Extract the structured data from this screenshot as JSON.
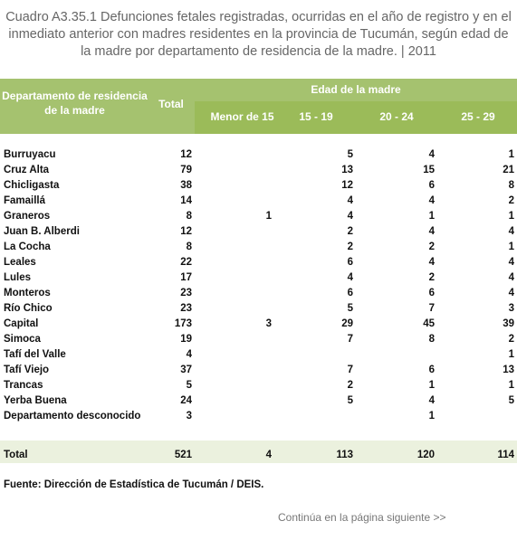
{
  "title": "Cuadro A3.35.1 Defunciones fetales registradas, ocurridas en el año de registro y en el inmediato anterior con madres residentes en la provincia de Tucumán, según edad de la madre por departamento de residencia de la madre. | 2011",
  "table": {
    "header": {
      "departamento": "Departamento de residencia de la madre",
      "total": "Total",
      "group": "Edad de la madre",
      "ages": [
        "Menor de 15",
        "15 - 19",
        "20 - 24",
        "25 - 29"
      ]
    },
    "rows": [
      [
        "Burruyacu",
        12,
        null,
        5,
        4,
        1
      ],
      [
        "Cruz Alta",
        79,
        null,
        13,
        15,
        21
      ],
      [
        "Chicligasta",
        38,
        null,
        12,
        6,
        8
      ],
      [
        "Famaillá",
        14,
        null,
        4,
        4,
        2
      ],
      [
        "Graneros",
        8,
        1,
        4,
        1,
        1
      ],
      [
        "Juan B. Alberdi",
        12,
        null,
        2,
        4,
        4
      ],
      [
        "La Cocha",
        8,
        null,
        2,
        2,
        1
      ],
      [
        "Leales",
        22,
        null,
        6,
        4,
        4
      ],
      [
        "Lules",
        17,
        null,
        4,
        2,
        4
      ],
      [
        "Monteros",
        23,
        null,
        6,
        6,
        4
      ],
      [
        "Río Chico",
        23,
        null,
        5,
        7,
        3
      ],
      [
        "Capital",
        173,
        3,
        29,
        45,
        39
      ],
      [
        "Simoca",
        19,
        null,
        7,
        8,
        2
      ],
      [
        "Tafí del Valle",
        4,
        null,
        null,
        null,
        1
      ],
      [
        "Tafí Viejo",
        37,
        null,
        7,
        6,
        13
      ],
      [
        "Trancas",
        5,
        null,
        2,
        1,
        1
      ],
      [
        "Yerba Buena",
        24,
        null,
        5,
        4,
        5
      ],
      [
        "Departamento desconocido",
        3,
        null,
        null,
        1,
        null
      ]
    ],
    "total": [
      "Total",
      521,
      4,
      113,
      120,
      114
    ]
  },
  "source": "Fuente: Dirección de Estadística de Tucumán / DEIS.",
  "continuation": "Continúa en la página siguiente >>"
}
